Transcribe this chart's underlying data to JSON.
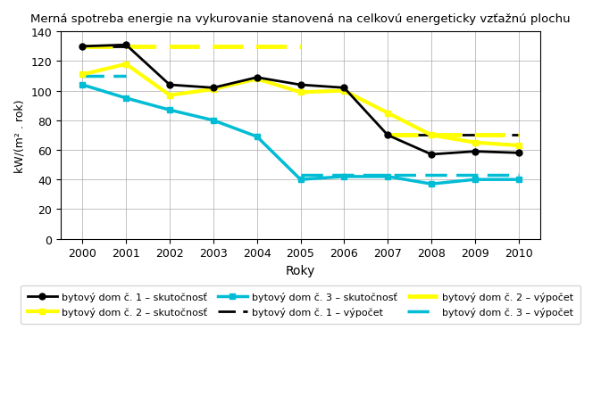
{
  "title": "Merná spotreba energie na vykurovanie stanovená na celkovú energeticky vzťažnú plochu",
  "xlabel": "Roky",
  "ylabel": "kW/(m² . rok)",
  "years": [
    2000,
    2001,
    2002,
    2003,
    2004,
    2005,
    2006,
    2007,
    2008,
    2009,
    2010
  ],
  "dom1_skutocnost": [
    130,
    131,
    104,
    102,
    109,
    104,
    102,
    70,
    57,
    59,
    58
  ],
  "dom2_skutocnost": [
    111,
    118,
    97,
    101,
    108,
    99,
    100,
    85,
    70,
    65,
    63
  ],
  "dom3_skutocnost": [
    104,
    95,
    87,
    80,
    69,
    40,
    42,
    42,
    37,
    40,
    40
  ],
  "dom1_vypocet_seg1_years": [
    2000,
    2001
  ],
  "dom1_vypocet_seg1_vals": [
    130,
    130
  ],
  "dom1_vypocet_seg2_years": [
    2007,
    2008,
    2009,
    2010
  ],
  "dom1_vypocet_seg2_vals": [
    70,
    70,
    70,
    70
  ],
  "dom2_vypocet_seg1_years": [
    2000,
    2001,
    2002,
    2003,
    2004,
    2005
  ],
  "dom2_vypocet_seg1_vals": [
    130,
    130,
    130,
    130,
    130,
    130
  ],
  "dom2_vypocet_seg2_years": [
    2007,
    2008,
    2009,
    2010
  ],
  "dom2_vypocet_seg2_vals": [
    70,
    70,
    70,
    70
  ],
  "dom3_vypocet_seg1_years": [
    2000,
    2001
  ],
  "dom3_vypocet_seg1_vals": [
    110,
    110
  ],
  "dom3_vypocet_seg2_years": [
    2005,
    2006,
    2007,
    2008,
    2009,
    2010
  ],
  "dom3_vypocet_seg2_vals": [
    43,
    43,
    43,
    43,
    43,
    43
  ],
  "color_dom1": "#000000",
  "color_dom2": "#ffff00",
  "color_dom3": "#00bcd4",
  "ylim": [
    0,
    140
  ],
  "yticks": [
    0,
    20,
    40,
    60,
    80,
    100,
    120,
    140
  ],
  "legend_skutocnost_1": "bytový dom č. 1 – skutočnosť",
  "legend_vypocet_1": "bytový dom č. 1 – výpočet",
  "legend_skutocnost_2": "bytový dom č. 2 – skutočnosť",
  "legend_vypocet_2": "bytový dom č. 2 – výpočet",
  "legend_skutocnost_3": "bytový dom č. 3 – skutočnosť",
  "legend_vypocet_3": "bytový dom č. 3 – výpočet"
}
